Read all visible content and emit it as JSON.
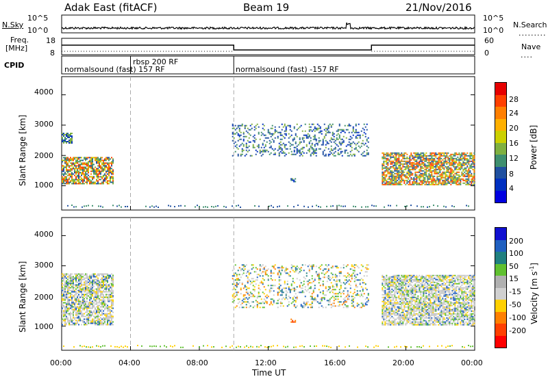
{
  "header": {
    "radar": "Adak East (fitACF)",
    "beam": "Beam 19",
    "date": "21/Nov/2016"
  },
  "noise_panel": {
    "left_label": "N.Sky",
    "right_label": "N.Search",
    "left_ticks": [
      "10^5",
      "10^0"
    ],
    "right_ticks": [
      "10^5",
      "10^0"
    ]
  },
  "freq_panel": {
    "left_label_1": "Freq.",
    "left_label_2": "[MHz]",
    "right_label": "Nave",
    "left_ticks": [
      "18",
      "8"
    ],
    "right_ticks": [
      "60",
      "0"
    ]
  },
  "cpid_panel": {
    "label": "CPID",
    "segments": [
      {
        "start_hour": 0,
        "text": "normalsound (fast) 157 RF"
      },
      {
        "start_hour": 4,
        "text": "rbsp 200 RF"
      },
      {
        "start_hour": 10,
        "text": "normalsound (fast) -157 RF"
      }
    ]
  },
  "power_colorbar": {
    "label": "Power [dB]",
    "ticks": [
      "28",
      "24",
      "20",
      "16",
      "12",
      "8",
      "4"
    ],
    "colors": [
      "#e60000",
      "#ff4000",
      "#ff7f00",
      "#ffb000",
      "#ccd000",
      "#7fb040",
      "#3f8f6f",
      "#2050a0",
      "#0030c0",
      "#0000e0"
    ]
  },
  "velocity_colorbar": {
    "label": "Velocity [m s",
    "label_sup": "-1",
    "label_end": "]",
    "ticks": [
      "200",
      "100",
      "50",
      "15",
      "-15",
      "-50",
      "-100",
      "-200"
    ],
    "colors": [
      "#1010d0",
      "#2060c0",
      "#208080",
      "#60c030",
      "#b0b0b0",
      "#d0d0d0",
      "#ffd000",
      "#ff8000",
      "#ff4000",
      "#ff0000"
    ]
  },
  "axes": {
    "ylabel": "Slant Range [km]",
    "xlabel": "Time UT",
    "y_ticks": [
      "1000",
      "2000",
      "3000",
      "4000"
    ],
    "x_ticks": [
      "00:00",
      "04:00",
      "08:00",
      "12:00",
      "16:00",
      "20:00",
      "00:00"
    ]
  },
  "chart_data": [
    {
      "type": "heatmap",
      "title": "",
      "panel": "power",
      "xlabel": "",
      "ylabel": "Slant Range [km]",
      "xlim_hours": [
        0,
        24
      ],
      "ylim": [
        200,
        4600
      ],
      "regions": [
        {
          "t": [
            0.0,
            3.0
          ],
          "range": [
            1050,
            1950
          ],
          "level": "high"
        },
        {
          "t": [
            0.0,
            0.6
          ],
          "range": [
            2400,
            2750
          ],
          "level": "mid"
        },
        {
          "t": [
            9.9,
            17.8
          ],
          "range": [
            2000,
            3050
          ],
          "level": "low"
        },
        {
          "t": [
            13.3,
            13.6
          ],
          "range": [
            1150,
            1250
          ],
          "level": "mid"
        },
        {
          "t": [
            18.6,
            24.0
          ],
          "range": [
            1050,
            2100
          ],
          "level": "high"
        }
      ]
    },
    {
      "type": "heatmap",
      "title": "",
      "panel": "velocity",
      "xlabel": "Time UT",
      "ylabel": "Slant Range [km]",
      "xlim_hours": [
        0,
        24
      ],
      "ylim": [
        200,
        4600
      ],
      "regions": [
        {
          "t": [
            0.0,
            3.0
          ],
          "range": [
            1050,
            2750
          ],
          "level": "ground"
        },
        {
          "t": [
            9.9,
            17.8
          ],
          "range": [
            1600,
            3050
          ],
          "level": "mixed"
        },
        {
          "t": [
            13.3,
            13.6
          ],
          "range": [
            1150,
            1250
          ],
          "level": "neg"
        },
        {
          "t": [
            18.6,
            24.0
          ],
          "range": [
            1050,
            2700
          ],
          "level": "ground"
        }
      ]
    }
  ]
}
